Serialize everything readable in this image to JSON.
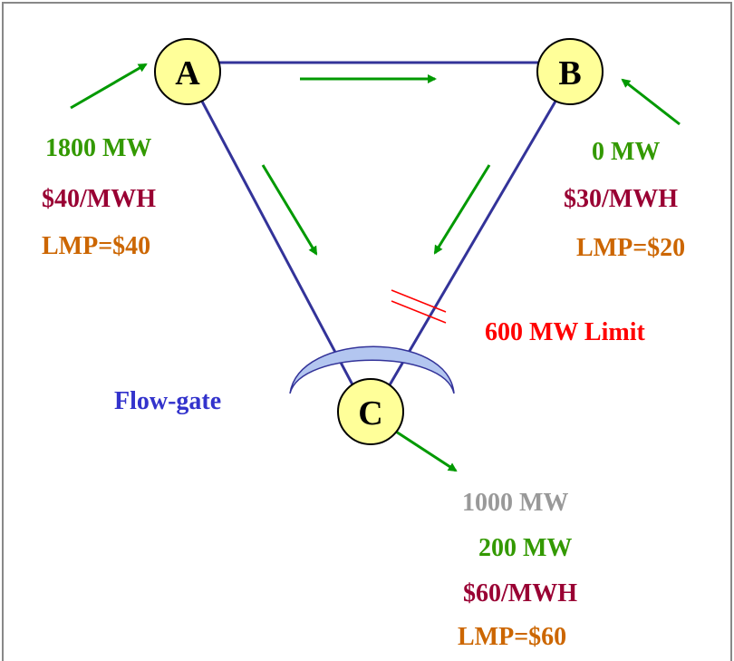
{
  "nodes": {
    "a": {
      "label": "A"
    },
    "b": {
      "label": "B"
    },
    "c": {
      "label": "C"
    }
  },
  "node_a_info": {
    "generation": "1800 MW",
    "price": "$40/MWH",
    "lmp": "LMP=$40"
  },
  "node_b_info": {
    "generation": "0 MW",
    "price": "$30/MWH",
    "lmp": "LMP=$20"
  },
  "node_c_info": {
    "load": "1000 MW",
    "generation": "200 MW",
    "price": "$60/MWH",
    "lmp": "LMP=$60"
  },
  "line_limit": "600 MW Limit",
  "flowgate_label": "Flow-gate",
  "colors": {
    "node_fill": "#ffff99",
    "line": "#333399",
    "arrow": "#009900",
    "mw_text": "#339900",
    "price_text": "#990033",
    "lmp_text": "#cc6600",
    "limit_text": "#ff0000",
    "flowgate_text": "#3333cc",
    "flowgate_fill": "#b3c6f0",
    "load_text": "#999999"
  }
}
